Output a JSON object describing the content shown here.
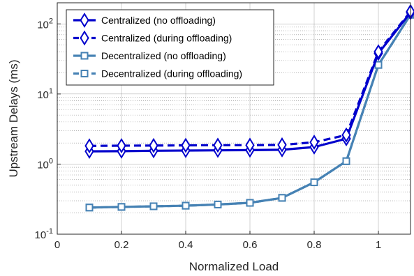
{
  "chart_data": {
    "type": "line",
    "xlabel": "Normalized Load",
    "ylabel": "Upstream Delays (ms)",
    "xlim": [
      0,
      1.1
    ],
    "ylim": [
      0.1,
      200
    ],
    "yscale": "log",
    "grid": true,
    "legend_position": "top-left",
    "x_ticks": [
      0,
      0.2,
      0.4,
      0.6,
      0.8,
      1
    ],
    "x_tick_labels": [
      "0",
      "0.2",
      "0.4",
      "0.6",
      "0.8",
      "1"
    ],
    "y_ticks": [
      0.1,
      1,
      10,
      100
    ],
    "y_tick_labels": [
      {
        "base": "10",
        "exp": "-1"
      },
      {
        "base": "10",
        "exp": "0"
      },
      {
        "base": "10",
        "exp": "1"
      },
      {
        "base": "10",
        "exp": "2"
      }
    ],
    "x": [
      0.1,
      0.2,
      0.3,
      0.4,
      0.5,
      0.6,
      0.7,
      0.8,
      0.9,
      1.0,
      1.1
    ],
    "series": [
      {
        "name": "Centralized (no offloading)",
        "color": "#0000cc",
        "dash": "solid",
        "marker": "diamond",
        "values": [
          1.52,
          1.53,
          1.55,
          1.56,
          1.57,
          1.58,
          1.6,
          1.75,
          2.3,
          38,
          145
        ]
      },
      {
        "name": "Centralized (during offloading)",
        "color": "#0000cc",
        "dash": "dashed",
        "marker": "diamond",
        "values": [
          1.82,
          1.83,
          1.84,
          1.85,
          1.86,
          1.86,
          1.88,
          2.05,
          2.6,
          40,
          150
        ]
      },
      {
        "name": "Decentralized (no offloading)",
        "color": "#4682b4",
        "dash": "solid",
        "marker": "square",
        "values": [
          0.24,
          0.245,
          0.25,
          0.255,
          0.265,
          0.28,
          0.33,
          0.55,
          1.1,
          26,
          135
        ]
      },
      {
        "name": "Decentralized (during offloading)",
        "color": "#4682b4",
        "dash": "dashed",
        "marker": "square",
        "values": [
          0.24,
          0.245,
          0.25,
          0.255,
          0.265,
          0.28,
          0.33,
          0.55,
          1.1,
          26,
          135
        ]
      }
    ]
  }
}
